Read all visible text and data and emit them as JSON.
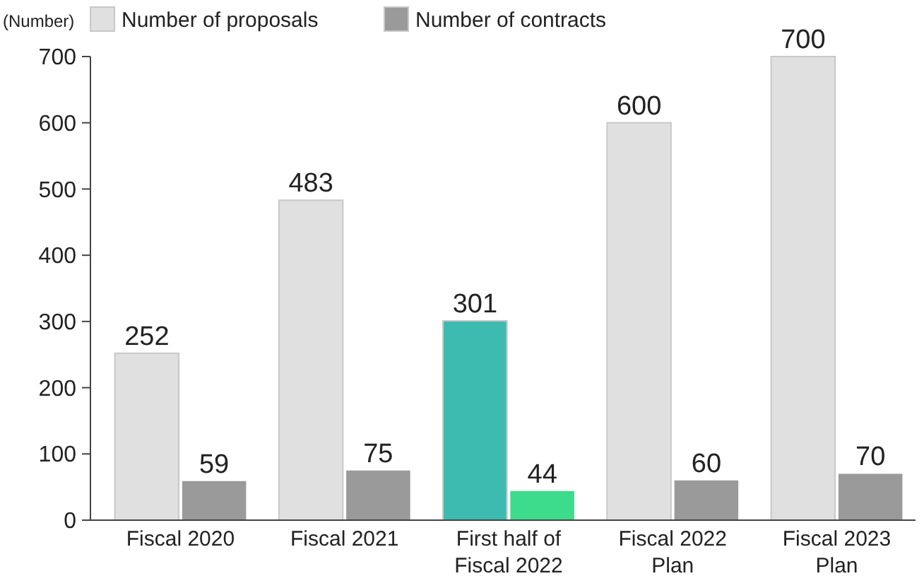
{
  "chart_data": {
    "type": "bar",
    "ylabel": "(Number)",
    "categories": [
      "Fiscal 2020",
      "Fiscal 2021",
      "First half of Fiscal 2022",
      "Fiscal 2022 Plan",
      "Fiscal 2023 Plan"
    ],
    "series": [
      {
        "name": "Number of proposals",
        "color": "#e0e0e0",
        "colors": [
          "#e0e0e0",
          "#e0e0e0",
          "#3dbbb0",
          "#e0e0e0",
          "#e0e0e0"
        ],
        "values": [
          252,
          483,
          301,
          600,
          700
        ]
      },
      {
        "name": "Number of contracts",
        "color": "#9a9a9a",
        "colors": [
          "#9a9a9a",
          "#9a9a9a",
          "#3ddc8c",
          "#9a9a9a",
          "#9a9a9a"
        ],
        "values": [
          59,
          75,
          44,
          60,
          70
        ]
      }
    ],
    "ylim": [
      0,
      700
    ],
    "yticks": [
      0,
      100,
      200,
      300,
      400,
      500,
      600,
      700
    ],
    "data_labels": true,
    "legend": "top",
    "grid": false
  }
}
